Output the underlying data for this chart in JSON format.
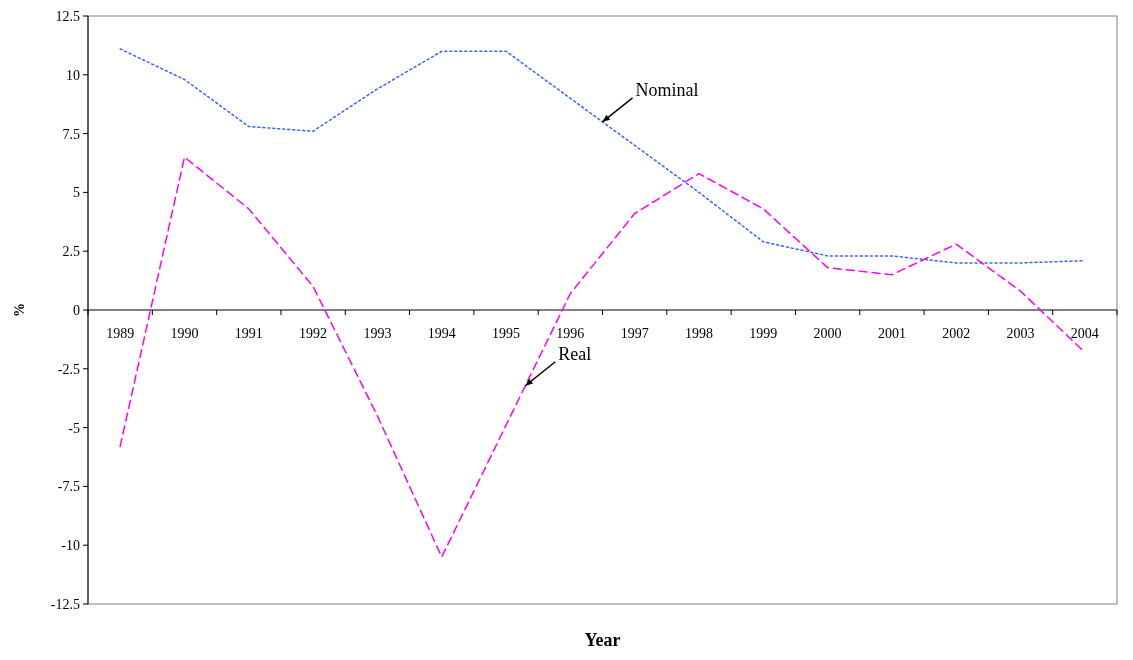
{
  "chart_data": {
    "type": "line",
    "xlabel": "Year",
    "ylabel": "%",
    "categories": [
      "1989",
      "1990",
      "1991",
      "1992",
      "1993",
      "1994",
      "1995",
      "1996",
      "1997",
      "1998",
      "1999",
      "2000",
      "2001",
      "2002",
      "2003",
      "2004"
    ],
    "series": [
      {
        "name": "Nominal",
        "color": "#3366ff",
        "line_style": "dotted",
        "values": [
          11.1,
          9.8,
          7.8,
          7.6,
          9.4,
          11.0,
          11.0,
          9.0,
          7.0,
          5.0,
          2.9,
          2.3,
          2.3,
          2.0,
          2.0,
          2.1
        ]
      },
      {
        "name": "Real",
        "color": "#ff00ff",
        "line_style": "dashed",
        "values": [
          -5.8,
          6.5,
          4.3,
          1.0,
          -4.5,
          -10.5,
          -4.9,
          0.7,
          4.1,
          5.8,
          4.3,
          1.8,
          1.5,
          2.8,
          0.8,
          -1.8
        ]
      }
    ],
    "ylim": [
      -12.5,
      12.5
    ],
    "yticks": [
      12.5,
      10,
      7.5,
      5,
      2.5,
      0,
      -2.5,
      -5,
      -7.5,
      -10,
      -12.5
    ],
    "grid": false,
    "legend": false,
    "marker": "none"
  }
}
